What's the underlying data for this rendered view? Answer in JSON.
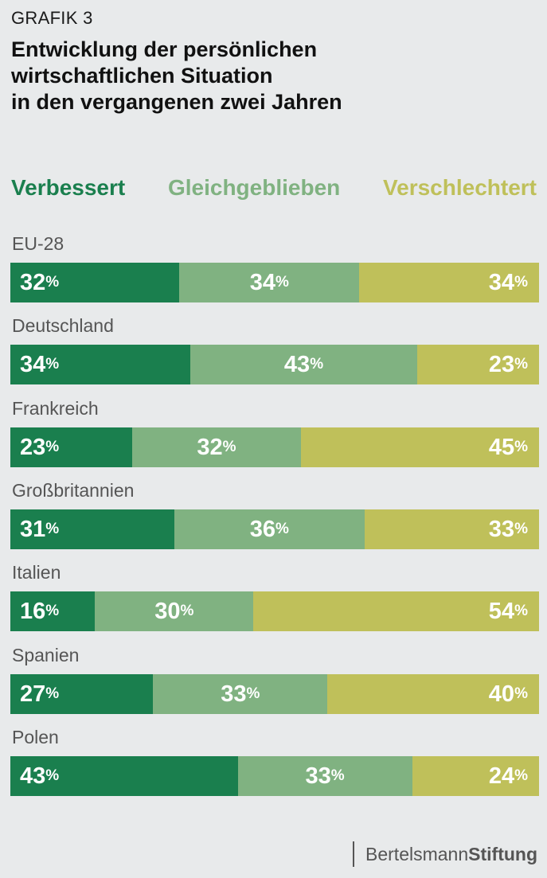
{
  "header": {
    "kicker": "GRAFIK 3",
    "title_lines": [
      "Entwicklung der persönlichen",
      "wirtschaftlichen Situation",
      "in den vergangenen zwei Jahren"
    ]
  },
  "colors": {
    "verbessert": "#1a7f4e",
    "gleichgeblieben": "#80b281",
    "verschlechtert": "#bfc05a"
  },
  "chart_data": {
    "type": "bar",
    "orientation": "horizontal-stacked-100",
    "title": "Entwicklung der persönlichen wirtschaftlichen Situation in den vergangenen zwei Jahren",
    "legend_position": "top",
    "categories": [
      "EU-28",
      "Deutschland",
      "Frankreich",
      "Großbritannien",
      "Italien",
      "Spanien",
      "Polen"
    ],
    "series": [
      {
        "name": "Verbessert",
        "values": [
          32,
          34,
          23,
          31,
          16,
          27,
          43
        ]
      },
      {
        "name": "Gleichgeblieben",
        "values": [
          34,
          43,
          32,
          36,
          30,
          33,
          33
        ]
      },
      {
        "name": "Verschlechtert",
        "values": [
          34,
          23,
          45,
          33,
          54,
          40,
          24
        ]
      }
    ],
    "unit": "%",
    "xlim": [
      0,
      100
    ]
  },
  "footer": {
    "brand_regular": "Bertelsmann",
    "brand_bold": "Stiftung"
  }
}
